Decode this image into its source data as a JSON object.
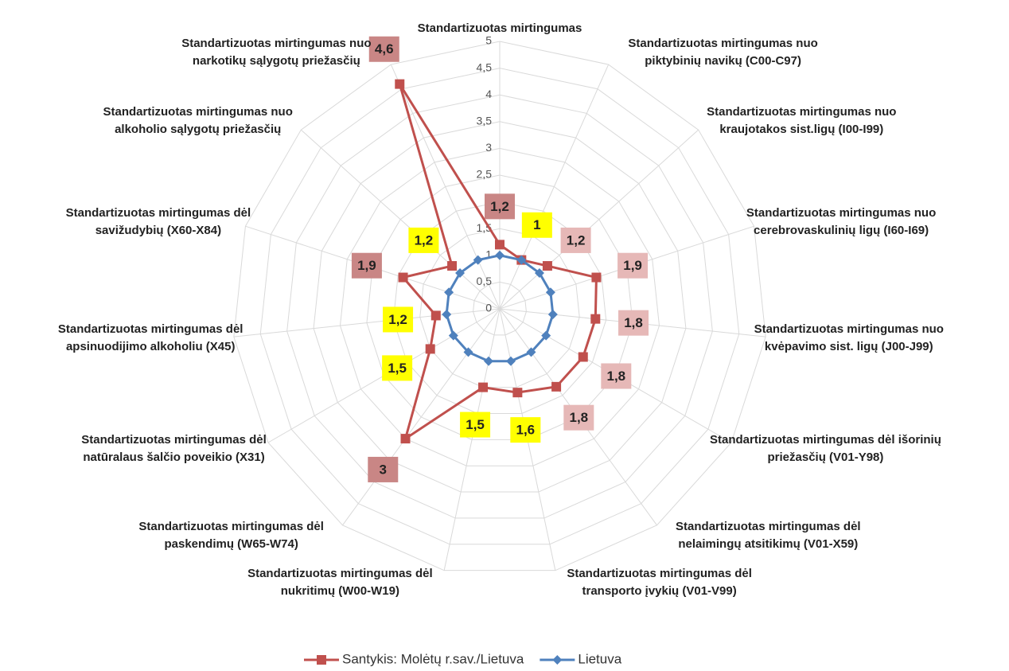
{
  "chart_data": {
    "type": "radar",
    "categories": [
      "Standartizuotas mirtingumas",
      "Standartizuotas mirtingumas nuo piktybinių navikų (C00-C97)",
      "Standartizuotas mirtingumas nuo kraujotakos sist.ligų (I00-I99)",
      "Standartizuotas mirtingumas nuo cerebrovaskulinių ligų (I60-I69)",
      "Standartizuotas mirtingumas nuo kvėpavimo sist. ligų (J00-J99)",
      "Standartizuotas mirtingumas dėl išorinių priežasčių (V01-Y98)",
      "Standartizuotas mirtingumas dėl nelaimingų atsitikimų (V01-X59)",
      "Standartizuotas mirtingumas dėl transporto įvykių (V01-V99)",
      "Standartizuotas mirtingumas dėl nukritimų (W00-W19)",
      "Standartizuotas mirtingumas dėl paskendimų (W65-W74)",
      "Standartizuotas mirtingumas dėl natūralaus šalčio poveikio (X31)",
      "Standartizuotas mirtingumas dėl apsinuodijimo alkoholiu (X45)",
      "Standartizuotas mirtingumas dėl savižudybių (X60-X84)",
      "Standartizuotas mirtingumas nuo alkoholio sąlygotų priežasčių",
      "Standartizuotas mirtingumas nuo narkotikų sąlygotų priežasčių"
    ],
    "series": [
      {
        "name": "Santykis: Molėtų r.sav./Lietuva",
        "color": "#c0504d",
        "values": [
          1.2,
          1,
          1.2,
          1.9,
          1.8,
          1.8,
          1.8,
          1.6,
          1.5,
          3,
          1.5,
          1.2,
          1.9,
          1.2,
          4.6
        ],
        "value_labels": [
          "1,2",
          "1",
          "1,2",
          "1,9",
          "1,8",
          "1,8",
          "1,8",
          "1,6",
          "1,5",
          "3",
          "1,5",
          "1,2",
          "1,9",
          "1,2",
          "4,6"
        ],
        "label_colors": [
          "#c98685",
          "#ffff00",
          "#e6b8b7",
          "#e6b8b7",
          "#e6b8b7",
          "#e6b8b7",
          "#e6b8b7",
          "#ffff00",
          "#ffff00",
          "#c98685",
          "#ffff00",
          "#ffff00",
          "#c98685",
          "#ffff00",
          "#c98685"
        ]
      },
      {
        "name": "Lietuva",
        "color": "#4f81bd",
        "values": [
          1,
          1,
          1,
          1,
          1,
          1,
          1,
          1,
          1,
          1,
          1,
          1,
          1,
          1,
          1
        ]
      }
    ],
    "ylim": [
      0,
      5
    ],
    "yticks": [
      0,
      {
        "value": 0.5,
        "label": "0,5"
      },
      1,
      {
        "value": 1.5,
        "label": "1,5"
      },
      2,
      {
        "value": 2.5,
        "label": "2,5"
      },
      3,
      {
        "value": 3.5,
        "label": "3,5"
      },
      4,
      {
        "value": 4.5,
        "label": "4,5"
      },
      5
    ],
    "grid": true
  }
}
